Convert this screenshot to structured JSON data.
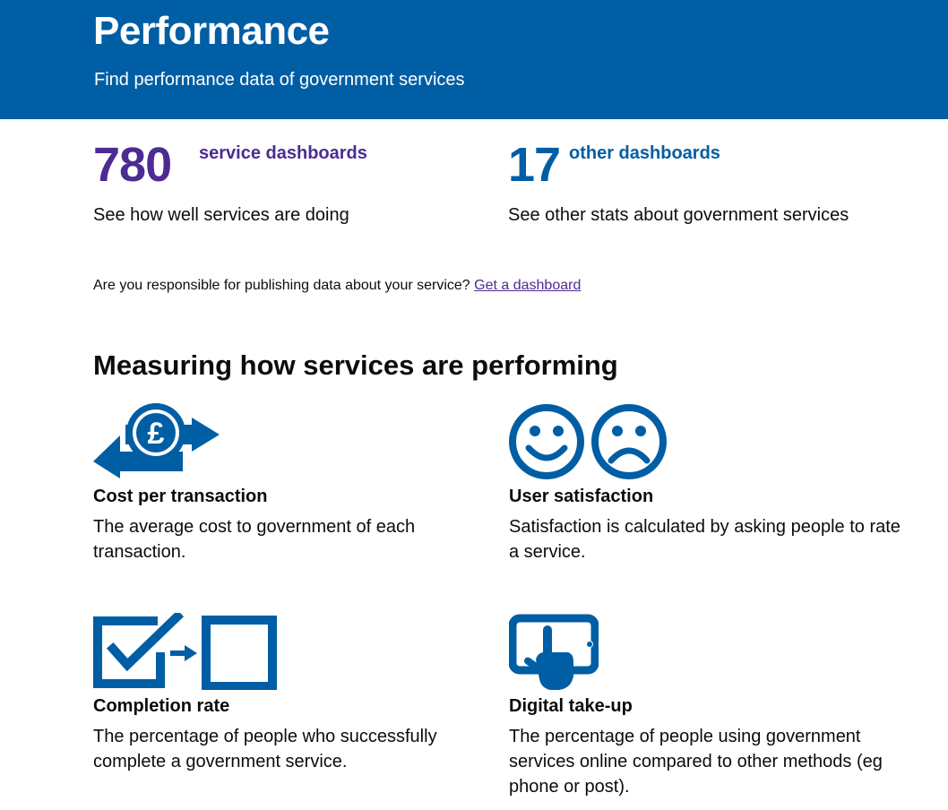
{
  "header": {
    "title": "Performance",
    "subtitle": "Find performance data of government services"
  },
  "stats": [
    {
      "number": "780",
      "label": "service dashboards",
      "description": "See how well services are doing"
    },
    {
      "number": "17",
      "label": "other dashboards",
      "description": "See other stats about government services"
    }
  ],
  "prompt": {
    "text": "Are you responsible for publishing data about your service?",
    "link": "Get a dashboard"
  },
  "section": {
    "title": "Measuring how services are performing"
  },
  "metrics": [
    {
      "icon": "pound-exchange-icon",
      "title": "Cost per transaction",
      "text": "The average cost to government of each transaction."
    },
    {
      "icon": "satisfaction-faces-icon",
      "title": "User satisfaction",
      "text": "Satisfaction is calculated by asking people to rate a service."
    },
    {
      "icon": "checkbox-completion-icon",
      "title": "Completion rate",
      "text": "The percentage of people who successfully complete a government service."
    },
    {
      "icon": "tablet-tap-icon",
      "title": "Digital take-up",
      "text": "The percentage of people using government services online compared to other methods (eg phone or post)."
    }
  ],
  "colors": {
    "header_bg": "#005ea5",
    "purple": "#4c2c92",
    "blue": "#005ea5",
    "text": "#0b0c0c"
  }
}
